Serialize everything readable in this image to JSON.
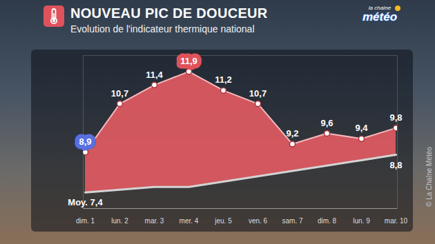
{
  "chart_data": {
    "type": "area",
    "title": "NOUVEAU PIC DE DOUCEUR",
    "subtitle": "Evolution de l'indicateur thermique national",
    "logo": {
      "line1": "la chaîne",
      "line2": "météo"
    },
    "credit": "© La Chaîne Météo",
    "categories": [
      "dim. 1",
      "lun. 2",
      "mar. 3",
      "mer. 4",
      "jeu. 5",
      "ven. 6",
      "sam. 7",
      "dim. 8",
      "lun. 9",
      "mar. 10"
    ],
    "series": [
      {
        "values": [
          8.9,
          10.7,
          11.4,
          11.9,
          11.2,
          10.7,
          9.2,
          9.6,
          9.4,
          9.8
        ],
        "value_labels": [
          "8,9",
          "10,7",
          "11,4",
          "11,9",
          "11,2",
          "10,7",
          "9,2",
          "9,6",
          "9,4",
          "9,8"
        ],
        "color": "#e05a62"
      },
      {
        "values": [
          7.4,
          7.5,
          7.6,
          7.6,
          7.8,
          8.0,
          8.2,
          8.4,
          8.6,
          8.8
        ],
        "value_labels": [
          "Moy. 7,4",
          null,
          null,
          null,
          null,
          null,
          null,
          null,
          null,
          "8,8"
        ],
        "color": "#d4d4d4"
      }
    ],
    "ylim": [
      6.8,
      12.5
    ],
    "yticks": [],
    "grid": false,
    "data_labels": true,
    "tick_labels": "x"
  }
}
